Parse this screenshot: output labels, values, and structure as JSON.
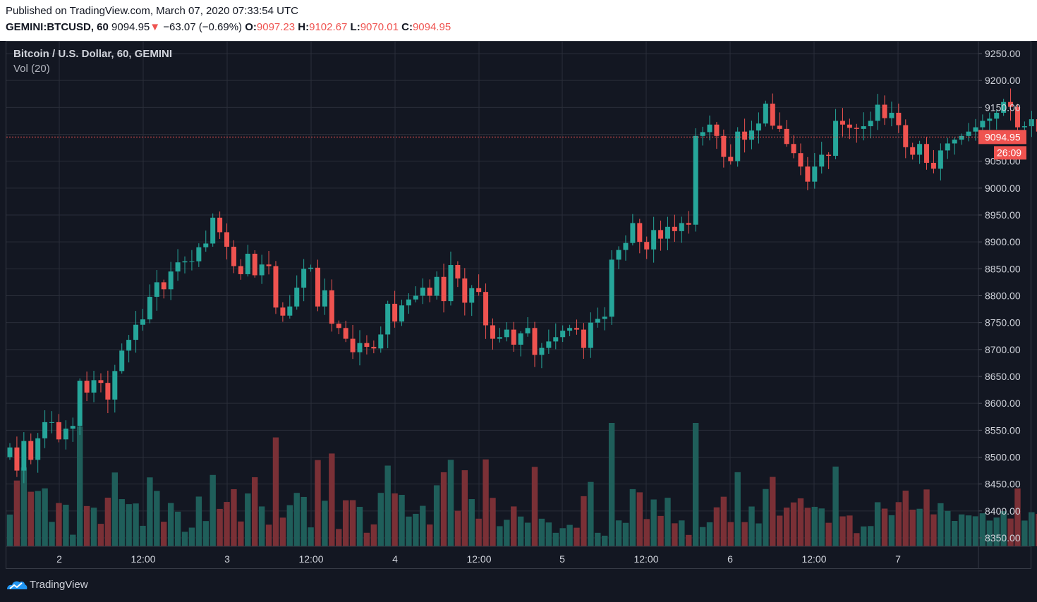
{
  "header": {
    "published": "Published on TradingView.com, March 07, 2020 07:33:54 UTC",
    "symbol": "GEMINI:BTCUSD, 60",
    "last": "9094.95",
    "change_arrow": "▼",
    "change": "−63.07 (−0.69%)",
    "o_label": "O:",
    "o_value": "9097.23",
    "h_label": "H:",
    "h_value": "9102.67",
    "l_label": "L:",
    "l_value": "9070.01",
    "c_label": "C:",
    "c_value": "9094.95"
  },
  "legend": {
    "title": "Bitcoin / U.S. Dollar, 60, GEMINI",
    "volume": "Vol (20)"
  },
  "price_badge": "9094.95",
  "countdown_badge": "26:09",
  "footer": {
    "brand": "TradingView"
  },
  "colors": {
    "background": "#131722",
    "grid": "#2a2e39",
    "up": "#26a69a",
    "down": "#ef5350",
    "vol_up": "#1f5e5a",
    "vol_down": "#7a3036",
    "axis_text": "#d1d4dc"
  },
  "chart_data": {
    "type": "candlestick",
    "interval": "60",
    "current_price": 9094.95,
    "ylim": [
      8330,
      9270
    ],
    "y_ticks": [
      "9250.00",
      "9200.00",
      "9150.00",
      "9100.00",
      "9050.00",
      "9000.00",
      "8950.00",
      "8900.00",
      "8850.00",
      "8800.00",
      "8750.00",
      "8700.00",
      "8650.00",
      "8600.00",
      "8550.00",
      "8500.00",
      "8450.00",
      "8400.00",
      "8350.00"
    ],
    "x_ticks": [
      "2",
      "12:00",
      "3",
      "12:00",
      "4",
      "12:00",
      "5",
      "12:00",
      "6",
      "12:00",
      "7"
    ],
    "closes": [
      8518,
      8475,
      8530,
      8495,
      8535,
      8565,
      8565,
      8533,
      8553,
      8558,
      8642,
      8620,
      8643,
      8638,
      8607,
      8660,
      8698,
      8718,
      8746,
      8756,
      8798,
      8825,
      8812,
      8845,
      8862,
      8864,
      8864,
      8890,
      8897,
      8945,
      8918,
      8891,
      8855,
      8840,
      8878,
      8838,
      8858,
      8855,
      8778,
      8763,
      8780,
      8815,
      8850,
      8852,
      8780,
      8810,
      8748,
      8740,
      8720,
      8695,
      8712,
      8705,
      8702,
      8728,
      8785,
      8752,
      8782,
      8793,
      8800,
      8815,
      8800,
      8835,
      8790,
      8857,
      8832,
      8787,
      8814,
      8807,
      8745,
      8720,
      8723,
      8737,
      8709,
      8730,
      8740,
      8690,
      8703,
      8715,
      8723,
      8735,
      8740,
      8737,
      8703,
      8750,
      8757,
      8761,
      8867,
      8885,
      8898,
      8935,
      8900,
      8886,
      8922,
      8906,
      8928,
      8920,
      8935,
      8932,
      9097,
      9104,
      9118,
      9097,
      9058,
      9050,
      9105,
      9090,
      9107,
      9120,
      9157,
      9116,
      9110,
      9082,
      9065,
      9040,
      9012,
      9040,
      9062,
      9060,
      9125,
      9118,
      9112,
      9110,
      9115,
      9125,
      9155,
      9130,
      9140,
      9117,
      9076,
      9062,
      9082,
      9047,
      9036,
      9070,
      9083,
      9090,
      9097,
      9105,
      9113,
      9125,
      9129,
      9140,
      9160,
      9151,
      9113,
      9115,
      9128,
      9105,
      9098,
      9100,
      9102,
      9094.95
    ],
    "volume_scale_note": "volume shown relative, no volume axis printed"
  }
}
